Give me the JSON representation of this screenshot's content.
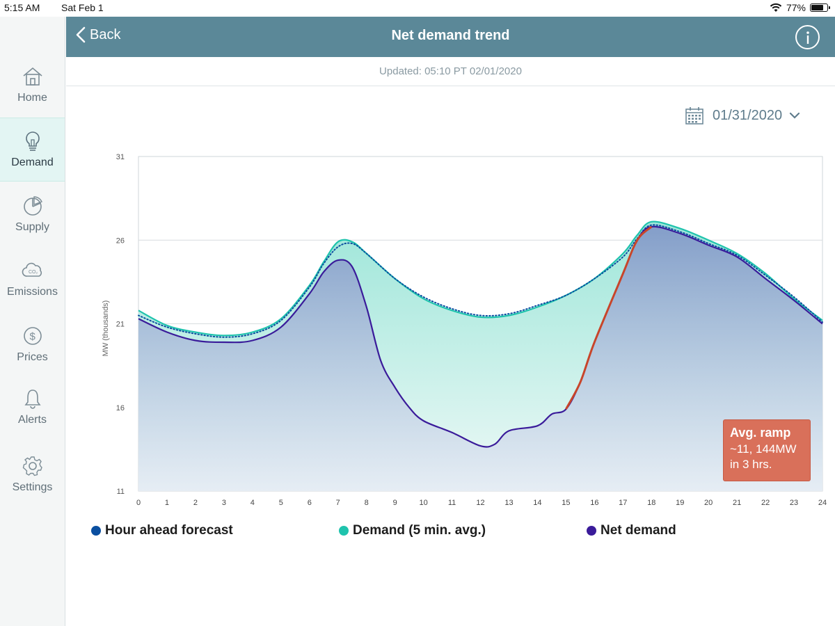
{
  "status_bar": {
    "time": "5:15 AM",
    "date": "Sat Feb 1",
    "battery": "77%"
  },
  "header": {
    "back_label": "Back",
    "title": "Net demand trend"
  },
  "updated": "Updated: 05:10 PT 02/01/2020",
  "date_picker": {
    "value": "01/31/2020"
  },
  "sidebar": {
    "items": [
      {
        "label": "Home",
        "icon": "home-icon"
      },
      {
        "label": "Demand",
        "icon": "lightbulb-icon",
        "active": true
      },
      {
        "label": "Supply",
        "icon": "pie-chart-icon"
      },
      {
        "label": "Emissions",
        "icon": "co2-cloud-icon"
      },
      {
        "label": "Prices",
        "icon": "dollar-icon"
      },
      {
        "label": "Alerts",
        "icon": "bell-icon"
      },
      {
        "label": "Settings",
        "icon": "gear-icon"
      }
    ]
  },
  "ramp_box": {
    "title": "Avg. ramp",
    "value": "~11, 144MW",
    "hours": "in 3 hrs."
  },
  "colors": {
    "header": "#5b8898",
    "forecast": "#0a4fa0",
    "demand": "#1fc3ad",
    "net": "#3a1b9a",
    "ramp": "#c8452a",
    "ramp_box": "#d9705a"
  },
  "chart_data": {
    "type": "line",
    "title": "Net demand trend",
    "xlabel": "",
    "ylabel": "MW (thousands)",
    "xlim": [
      0,
      24
    ],
    "ylim": [
      11,
      31
    ],
    "xticks": [
      "0",
      "1",
      "2",
      "3",
      "4",
      "5",
      "6",
      "7",
      "8",
      "9",
      "10",
      "11",
      "12",
      "13",
      "14",
      "15",
      "16",
      "17",
      "18",
      "19",
      "20",
      "21",
      "22",
      "23",
      "24"
    ],
    "yticks": [
      "11",
      "16",
      "21",
      "26",
      "31"
    ],
    "legend": [
      {
        "name": "Hour ahead forecast",
        "color": "#0a4fa0"
      },
      {
        "name": "Demand (5 min. avg.)",
        "color": "#1fc3ad"
      },
      {
        "name": "Net demand",
        "color": "#3a1b9a"
      }
    ],
    "series": [
      {
        "name": "Hour ahead forecast",
        "x": [
          0,
          1,
          2,
          3,
          4,
          5,
          6,
          6.5,
          7,
          7.5,
          8,
          9,
          10,
          11,
          12,
          13,
          14,
          15,
          16,
          17,
          17.5,
          18,
          19,
          20,
          21,
          22,
          23,
          24
        ],
        "values": [
          21.5,
          20.8,
          20.4,
          20.2,
          20.4,
          21.2,
          23.2,
          24.6,
          25.6,
          25.8,
          25.2,
          23.7,
          22.6,
          21.9,
          21.5,
          21.6,
          22.1,
          22.7,
          23.7,
          25.0,
          26.1,
          26.9,
          26.5,
          25.8,
          25.1,
          23.9,
          22.6,
          21.1
        ]
      },
      {
        "name": "Demand (5 min. avg.)",
        "x": [
          0,
          1,
          2,
          3,
          4,
          5,
          6,
          6.5,
          7,
          7.5,
          8,
          9,
          10,
          11,
          12,
          13,
          14,
          15,
          16,
          17,
          17.5,
          18,
          19,
          20,
          21,
          22,
          23,
          24
        ],
        "values": [
          21.8,
          20.9,
          20.5,
          20.3,
          20.5,
          21.3,
          23.3,
          24.7,
          25.9,
          25.9,
          25.2,
          23.7,
          22.5,
          21.8,
          21.4,
          21.5,
          22.0,
          22.7,
          23.7,
          25.2,
          26.3,
          27.1,
          26.7,
          26.0,
          25.2,
          24.0,
          22.5,
          21.2
        ]
      },
      {
        "name": "Net demand",
        "x": [
          0,
          1,
          2,
          3,
          4,
          5,
          6,
          6.5,
          7,
          7.5,
          8,
          8.5,
          9,
          9.5,
          10,
          11,
          12,
          12.5,
          13,
          14,
          14.5,
          15,
          15.5,
          16,
          17,
          17.5,
          18,
          19,
          20,
          21,
          22,
          23,
          24
        ],
        "values": [
          21.3,
          20.5,
          20.0,
          19.9,
          20.0,
          20.8,
          22.8,
          24.1,
          24.8,
          24.4,
          22.0,
          18.8,
          17.2,
          16.0,
          15.2,
          14.5,
          13.7,
          13.8,
          14.6,
          14.9,
          15.6,
          15.9,
          17.5,
          19.9,
          24.0,
          26.0,
          26.8,
          26.4,
          25.7,
          25.0,
          23.7,
          22.4,
          21.0
        ]
      }
    ],
    "ramp": {
      "from_hour": 15,
      "to_hour": 18,
      "label": "Avg. ramp ~11, 144MW in 3 hrs."
    }
  }
}
